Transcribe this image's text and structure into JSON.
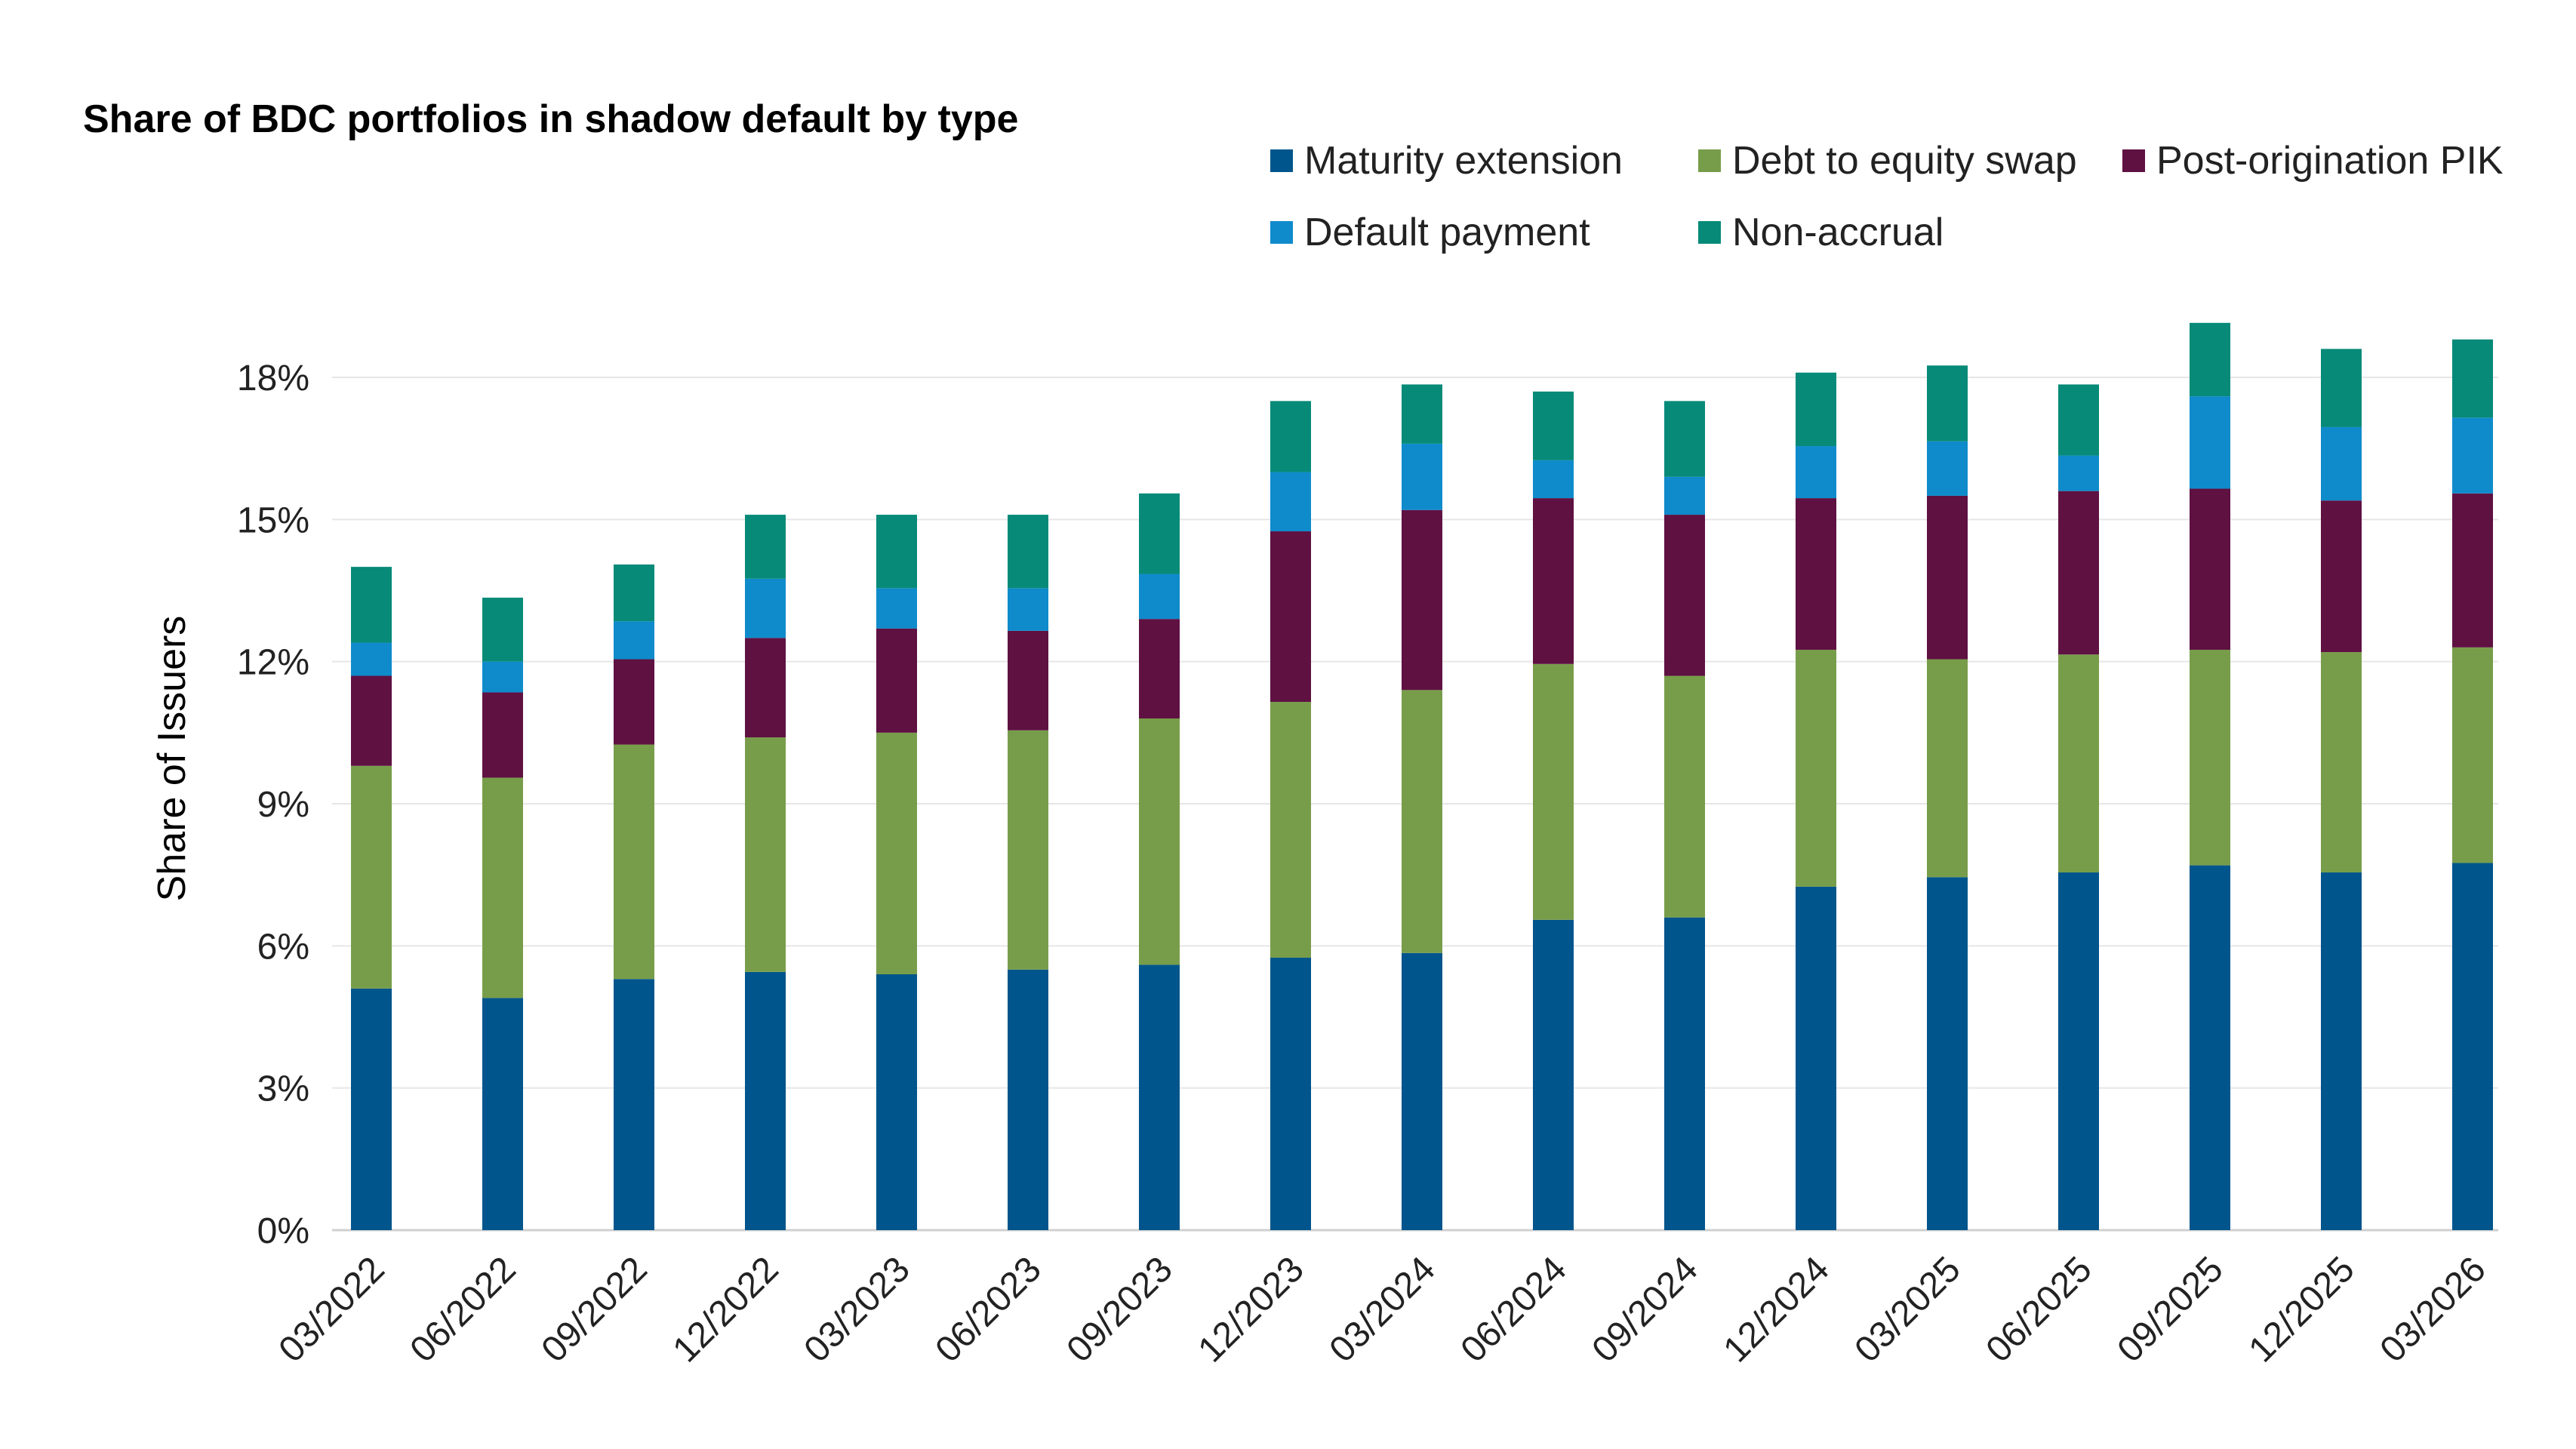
{
  "chart_data": {
    "type": "bar",
    "stacked": true,
    "title": "Share of BDC portfolios in shadow default by type",
    "ylabel": "Share of Issuers",
    "xlabel": "",
    "ylim": [
      0,
      18
    ],
    "yticks": [
      0,
      3,
      6,
      9,
      12,
      15,
      18
    ],
    "ytick_labels": [
      "0%",
      "3%",
      "6%",
      "9%",
      "12%",
      "15%",
      "18%"
    ],
    "grid": true,
    "legend_position": "top-right",
    "categories": [
      "03/2022",
      "06/2022",
      "09/2022",
      "12/2022",
      "03/2023",
      "06/2023",
      "09/2023",
      "12/2023",
      "03/2024",
      "06/2024",
      "09/2024",
      "12/2024",
      "03/2025",
      "06/2025",
      "09/2025",
      "12/2025",
      "03/2026"
    ],
    "series": [
      {
        "name": "Maturity extension",
        "color": "#00558C",
        "values": [
          5.1,
          4.9,
          5.3,
          5.45,
          5.4,
          5.5,
          5.6,
          5.75,
          5.85,
          6.55,
          6.6,
          7.25,
          7.45,
          7.55,
          7.7,
          7.55,
          7.75
        ]
      },
      {
        "name": "Debt to equity swap",
        "color": "#789D4A",
        "values": [
          4.7,
          4.65,
          4.95,
          4.95,
          5.1,
          5.05,
          5.2,
          5.4,
          5.55,
          5.4,
          5.1,
          5.0,
          4.6,
          4.6,
          4.55,
          4.65,
          4.55
        ]
      },
      {
        "name": "Post-origination PIK",
        "color": "#5F1142",
        "values": [
          1.9,
          1.8,
          1.8,
          2.1,
          2.2,
          2.1,
          2.1,
          3.6,
          3.8,
          3.5,
          3.4,
          3.2,
          3.45,
          3.45,
          3.4,
          3.2,
          3.25
        ]
      },
      {
        "name": "Default payment",
        "color": "#0F8BCB",
        "values": [
          0.7,
          0.65,
          0.8,
          1.25,
          0.85,
          0.9,
          0.95,
          1.25,
          1.4,
          0.8,
          0.8,
          1.1,
          1.15,
          0.75,
          1.95,
          1.55,
          1.6
        ]
      },
      {
        "name": "Non-accrual",
        "color": "#078A78",
        "values": [
          1.6,
          1.35,
          1.2,
          1.35,
          1.55,
          1.55,
          1.7,
          1.5,
          1.25,
          1.45,
          1.6,
          1.55,
          1.6,
          1.5,
          1.55,
          1.65,
          1.65
        ]
      }
    ]
  }
}
